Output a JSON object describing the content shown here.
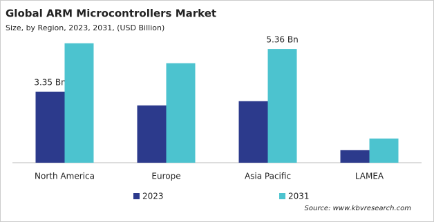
{
  "chart_data": {
    "type": "bar",
    "title": "Global ARM Microcontrollers Market",
    "subtitle": "Size, by Region, 2023, 2031, (USD Billion)",
    "source": "Source: www.kbvresearch.com",
    "categories": [
      "North America",
      "Europe",
      "Asia Pacific",
      "LAMEA"
    ],
    "series": [
      {
        "name": "2023",
        "color": "#2c3a8c",
        "values": [
          3.35,
          2.7,
          2.9,
          0.59
        ],
        "value_labels": [
          "3.35 Bn",
          null,
          null,
          null
        ]
      },
      {
        "name": "2031",
        "color": "#4cc3cf",
        "values": [
          5.63,
          4.69,
          5.36,
          1.14
        ],
        "value_labels": [
          null,
          null,
          "5.36 Bn",
          null
        ]
      }
    ],
    "ylim": [
      0,
      6.5
    ]
  }
}
